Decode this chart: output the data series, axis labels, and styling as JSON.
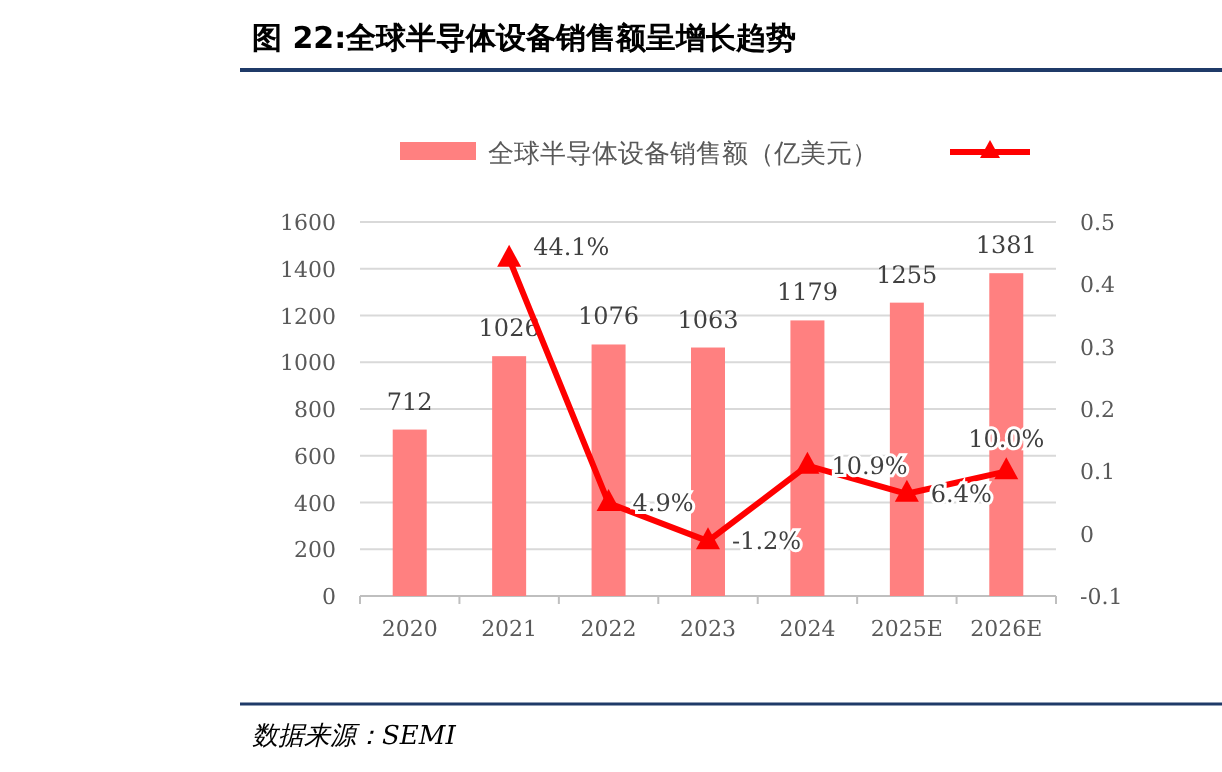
{
  "chart_data": {
    "type": "bar",
    "title": "图 22:全球半导体设备销售额呈增长趋势",
    "categories": [
      "2020",
      "2021",
      "2022",
      "2023",
      "2024",
      "2025E",
      "2026E"
    ],
    "series": [
      {
        "name": "全球半导体设备销售额（亿美元）",
        "color": "#ff8080",
        "values": [
          712,
          1026,
          1076,
          1063,
          1179,
          1255,
          1381
        ],
        "value_labels": [
          "712",
          "1026",
          "1076",
          "1063",
          "1179",
          "1255",
          "1381"
        ]
      },
      {
        "type": "line",
        "axis": "y2",
        "color": "#ff0000",
        "marker": "triangle",
        "values": [
          null,
          0.441,
          0.049,
          -0.012,
          0.109,
          0.064,
          0.1
        ],
        "value_labels": [
          null,
          "44.1%",
          "4.9%",
          "-1.2%",
          "10.9%",
          "6.4%",
          "10.0%"
        ]
      }
    ],
    "ylim": [
      0,
      1600
    ],
    "yticks": [
      0,
      200,
      400,
      600,
      800,
      1000,
      1200,
      1400,
      1600
    ],
    "y2lim": [
      -0.1,
      0.5
    ],
    "y2ticks": [
      -0.1,
      0,
      0.1,
      0.2,
      0.3,
      0.4,
      0.5
    ],
    "grid": "y",
    "legend": "top",
    "annotations": [
      "数据来源：SEMI"
    ]
  }
}
